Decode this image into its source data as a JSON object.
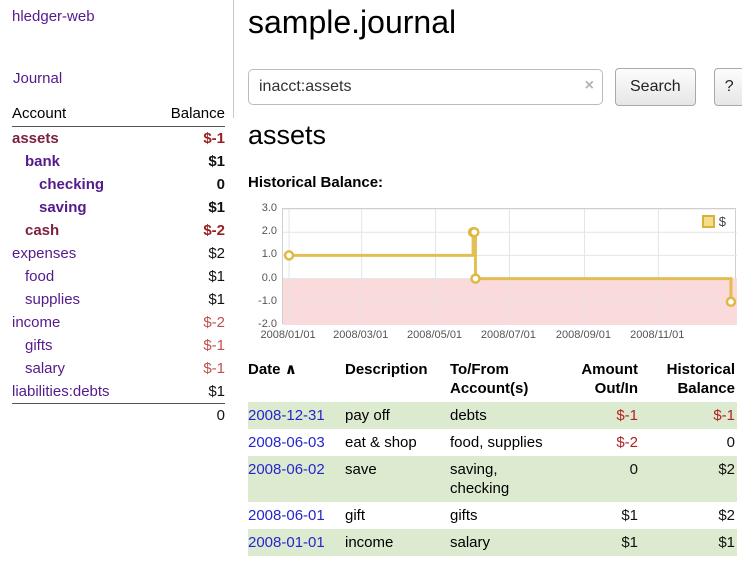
{
  "colors": {
    "link-purple": "#551A8B",
    "neg-dark": "#9a2121",
    "neg-light": "#c0504d",
    "neg-red": "#b22222",
    "date-blue": "#2626cc",
    "stripe-green": "#dcead0"
  },
  "sidebar": {
    "app_title": "hledger-web",
    "journal_link": "Journal",
    "accounts": {
      "header": {
        "account": "Account",
        "balance": "Balance"
      },
      "rows": [
        {
          "name": "assets",
          "balance": "$-1"
        },
        {
          "name": "bank",
          "balance": "$1"
        },
        {
          "name": "checking",
          "balance": "0"
        },
        {
          "name": "saving",
          "balance": "$1"
        },
        {
          "name": "cash",
          "balance": "$-2"
        },
        {
          "name": "expenses",
          "balance": "$2"
        },
        {
          "name": "food",
          "balance": "$1"
        },
        {
          "name": "supplies",
          "balance": "$1"
        },
        {
          "name": "income",
          "balance": "$-2"
        },
        {
          "name": "gifts",
          "balance": "$-1"
        },
        {
          "name": "salary",
          "balance": "$-1"
        },
        {
          "name": "liabilities:debts",
          "balance": "$1"
        }
      ],
      "total": "0"
    }
  },
  "main": {
    "title": "sample.journal",
    "search": {
      "value": "inacct:assets",
      "clear_icon": "×",
      "search_button": "Search",
      "help_button": "?"
    },
    "account_heading": "assets",
    "chart_title": "Historical Balance:"
  },
  "chart_data": {
    "type": "line",
    "style": "step",
    "title": "Historical Balance",
    "series": [
      {
        "name": "$",
        "color": "#dfb942",
        "points": [
          {
            "date": "2008-01-01",
            "value": 1
          },
          {
            "date": "2008-06-01",
            "value": 2
          },
          {
            "date": "2008-06-02",
            "value": 2
          },
          {
            "date": "2008-06-03",
            "value": 0
          },
          {
            "date": "2008-12-31",
            "value": -1
          }
        ]
      }
    ],
    "xlim": [
      "2007-12-27",
      "2009-01-05"
    ],
    "ylim": [
      -2,
      3
    ],
    "yticks": [
      {
        "label": "3.0",
        "value": 3
      },
      {
        "label": "2.0",
        "value": 2
      },
      {
        "label": "1.0",
        "value": 1
      },
      {
        "label": "0.0",
        "value": 0
      },
      {
        "label": "-1.0",
        "value": -1
      },
      {
        "label": "-2.0",
        "value": -2
      }
    ],
    "xticks": [
      {
        "label": "2008/01/01",
        "date": "2008-01-01"
      },
      {
        "label": "2008/03/01",
        "date": "2008-03-01"
      },
      {
        "label": "2008/05/01",
        "date": "2008-05-01"
      },
      {
        "label": "2008/07/01",
        "date": "2008-07-01"
      },
      {
        "label": "2008/09/01",
        "date": "2008-09-01"
      },
      {
        "label": "2008/11/01",
        "date": "2008-11-01"
      }
    ],
    "grid": true,
    "negative_region_color": "#fadada",
    "legend": {
      "label": "$",
      "position": "top-right"
    }
  },
  "register": {
    "headers": {
      "date": "Date",
      "sort_icon": "∧",
      "description": "Description",
      "account": "To/From Account(s)",
      "amount": "Amount Out/In",
      "balance": "Historical Balance"
    },
    "rows": [
      {
        "date": "2008-12-31",
        "description": "pay off",
        "account": "debts",
        "amount": "$-1",
        "balance": "$-1"
      },
      {
        "date": "2008-06-03",
        "description": "eat & shop",
        "account": "food, supplies",
        "amount": "$-2",
        "balance": "0"
      },
      {
        "date": "2008-06-02",
        "description": "save",
        "account": "saving, checking",
        "amount": "0",
        "balance": "$2"
      },
      {
        "date": "2008-06-01",
        "description": "gift",
        "account": "gifts",
        "amount": "$1",
        "balance": "$2"
      },
      {
        "date": "2008-01-01",
        "description": "income",
        "account": "salary",
        "amount": "$1",
        "balance": "$1"
      }
    ]
  }
}
